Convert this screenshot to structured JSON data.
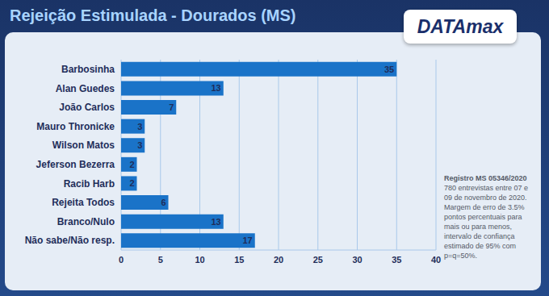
{
  "chart_data": {
    "type": "bar",
    "title": "Rejeição Estimulada - Dourados (MS)",
    "orientation": "horizontal",
    "categories": [
      "Barbosinha",
      "Alan Guedes",
      "João Carlos",
      "Mauro Thronicke",
      "Wilson Matos",
      "Jeferson Bezerra",
      "Racib Harb",
      "Rejeita Todos",
      "Branco/Nulo",
      "Não sabe/Não resp."
    ],
    "values": [
      35,
      13,
      7,
      3,
      3,
      2,
      2,
      6,
      13,
      17
    ],
    "color": "#1a73c8",
    "xlim": [
      0,
      40
    ],
    "xticks": [
      0,
      5,
      10,
      15,
      20,
      25,
      30,
      35,
      40
    ],
    "grid": true,
    "data_labels": true,
    "annotations": [
      "DATAmax",
      "Registro MS 05346/2020",
      "780 entrevistas entre 07 e 09 de novembro de 2020. Margem de erro de 3.5% pontos percentuais para mais ou para menos, intervalo de confiança estimado de 95% com p=q=50%."
    ]
  }
}
